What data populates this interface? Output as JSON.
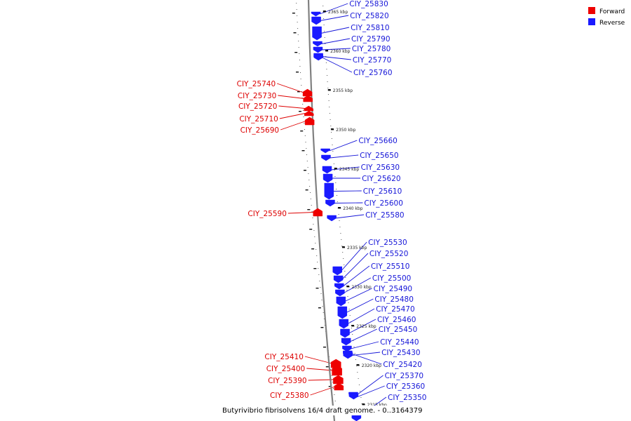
{
  "legend": {
    "items": [
      {
        "label": "Forward",
        "color": "#ee0000"
      },
      {
        "label": "Reverse",
        "color": "#1a1aff"
      }
    ]
  },
  "genome_title": "Butyrivibrio fibrisolvens 16/4 draft genome. - 0..3164379",
  "colors": {
    "forward": "#ee0000",
    "reverse": "#1a1aff",
    "forward_label": "#dd0000",
    "reverse_label": "#1515d8",
    "backbone": "#808080"
  },
  "kbp_markers": [
    "2365 kbp",
    "2360 kbp",
    "2355 kbp",
    "2350 kbp",
    "2345 kbp",
    "2340 kbp",
    "2335 kbp",
    "2330 kbp",
    "2325 kbp",
    "2320 kbp",
    "2315 kbp"
  ],
  "forward_genes": [
    "CIY_25740",
    "CIY_25730",
    "CIY_25720",
    "CIY_25710",
    "CIY_25690",
    "CIY_25590",
    "CIY_25410",
    "CIY_25400",
    "CIY_25390",
    "CIY_25380"
  ],
  "reverse_genes": [
    "CIY_25830",
    "CIY_25820",
    "CIY_25810",
    "CIY_25790",
    "CIY_25780",
    "CIY_25770",
    "CIY_25760",
    "CIY_25660",
    "CIY_25650",
    "CIY_25630",
    "CIY_25620",
    "CIY_25610",
    "CIY_25600",
    "CIY_25580",
    "CIY_25530",
    "CIY_25520",
    "CIY_25510",
    "CIY_25500",
    "CIY_25490",
    "CIY_25480",
    "CIY_25470",
    "CIY_25460",
    "CIY_25450",
    "CIY_25440",
    "CIY_25430",
    "CIY_25420",
    "CIY_25370",
    "CIY_25360",
    "CIY_25350"
  ]
}
